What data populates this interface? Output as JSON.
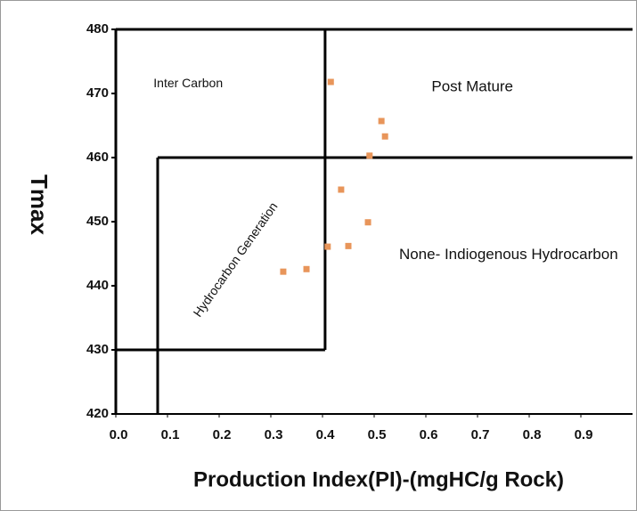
{
  "chart_data": {
    "type": "scatter",
    "xlabel": "Production Index(PI)-(mgHC/g Rock)",
    "ylabel": "Tmax",
    "xlim": [
      0,
      1.0
    ],
    "ylim": [
      420,
      480
    ],
    "xticks": [
      {
        "value": 0,
        "label": "0.0"
      },
      0.1,
      0.2,
      0.3,
      0.4,
      0.5,
      0.6,
      0.7,
      0.8,
      0.9
    ],
    "yticks": [
      420,
      430,
      440,
      450,
      460,
      470,
      480
    ],
    "series": [
      {
        "color": "#e8955a",
        "x": [
          0.416,
          0.514,
          0.521,
          0.491,
          0.436,
          0.488,
          0.41,
          0.45,
          0.369,
          0.324
        ],
        "y": [
          471.8,
          465.7,
          463.3,
          460.3,
          455.0,
          449.9,
          446.1,
          446.2,
          442.6,
          442.2
        ]
      }
    ],
    "lines": [
      {
        "x": [
          0.405,
          0.405
        ],
        "y": [
          480,
          430
        ]
      },
      {
        "x": [
          0,
          0.405
        ],
        "y": [
          430,
          430
        ]
      },
      {
        "x": [
          0.081,
          0.081
        ],
        "y": [
          420,
          460
        ]
      },
      {
        "x": [
          0.081,
          1.0
        ],
        "y": [
          460,
          460
        ]
      }
    ],
    "annotations": [
      {
        "text": "Inter Carbon",
        "x": 0.14,
        "y": 471.5
      },
      {
        "text": "Post Mature",
        "x": 0.69,
        "y": 471
      },
      {
        "text": "Hydrocarbon Generation",
        "x": 0.233,
        "y": 444,
        "rotation": -55
      },
      {
        "text": "None- Indiogenous Hydrocarbon",
        "x": 0.76,
        "y": 444.8
      }
    ]
  }
}
